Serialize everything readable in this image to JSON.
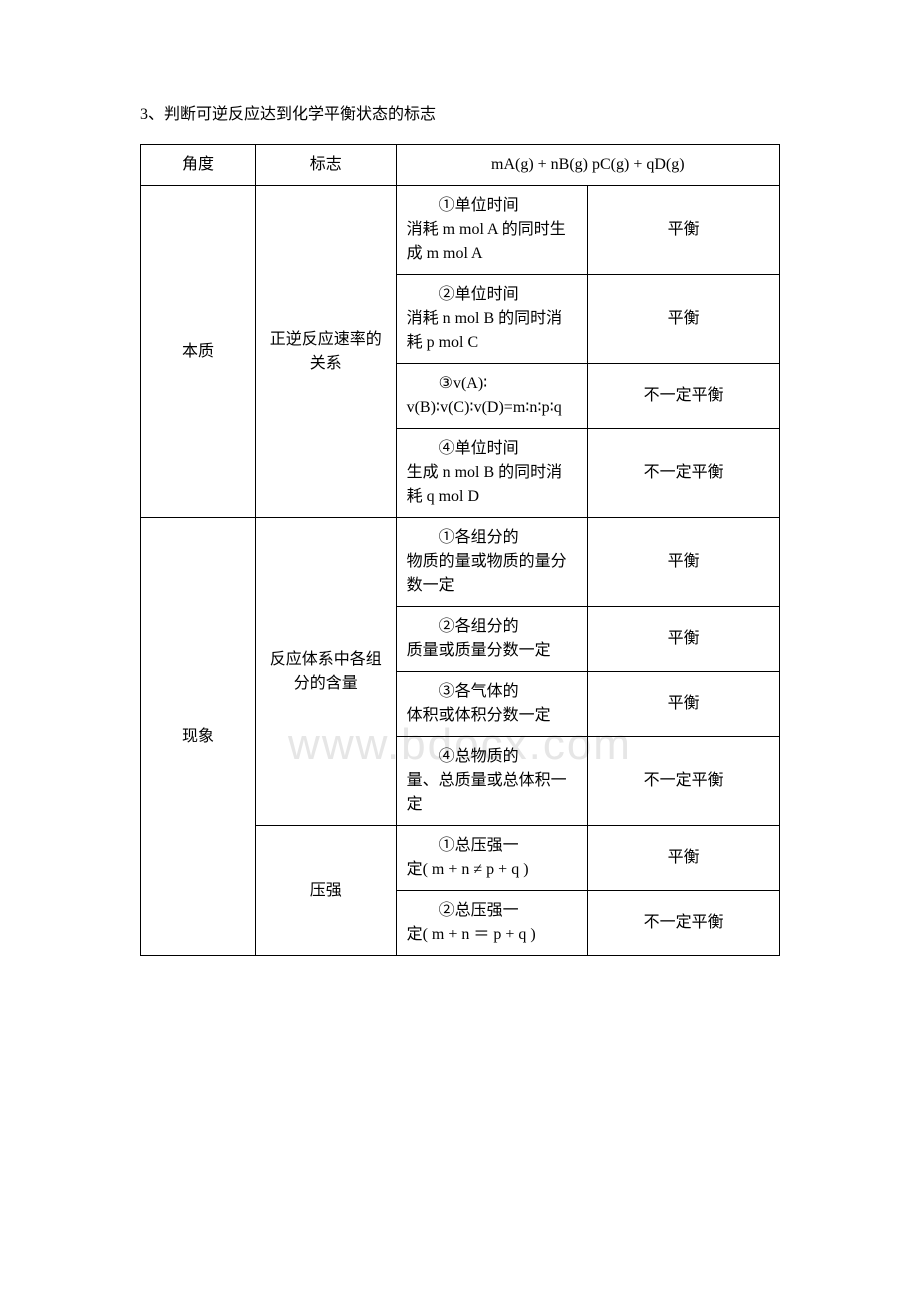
{
  "title": "3、判断可逆反应达到化学平衡状态的标志",
  "watermark": "www.bdocx.com",
  "headers": {
    "angle": "角度",
    "sign": "标志",
    "equation": "mA(g) + nB(g) pC(g) + qD(g)"
  },
  "results": {
    "balanced": "平衡",
    "not_necessarily": "不一定平衡"
  },
  "sections": [
    {
      "angle": "本质",
      "sign": "正逆反应速率的关系",
      "rows": [
        {
          "desc_first": "①单位时间",
          "desc_rest": "消耗 m mol A 的同时生成 m mol A",
          "result": "平衡"
        },
        {
          "desc_first": "②单位时间",
          "desc_rest": "消耗 n mol B 的同时消耗 p mol C",
          "result": "平衡"
        },
        {
          "desc_first": "③v(A)∶",
          "desc_rest": "v(B)∶v(C)∶v(D)=m∶n∶p∶q",
          "result": "不一定平衡"
        },
        {
          "desc_first": "④单位时间",
          "desc_rest": "生成 n mol B 的同时消耗 q mol D",
          "result": "不一定平衡"
        }
      ]
    },
    {
      "angle": "现象",
      "groups": [
        {
          "sign": "反应体系中各组分的含量",
          "rows": [
            {
              "desc_first": "①各组分的",
              "desc_rest": "物质的量或物质的量分数一定",
              "result": "平衡"
            },
            {
              "desc_first": "②各组分的",
              "desc_rest": "质量或质量分数一定",
              "result": "平衡"
            },
            {
              "desc_first": "③各气体的",
              "desc_rest": "体积或体积分数一定",
              "result": "平衡"
            },
            {
              "desc_first": "④总物质的",
              "desc_rest": "量、总质量或总体积一定",
              "result": "不一定平衡"
            }
          ]
        },
        {
          "sign": "压强",
          "rows": [
            {
              "desc_first": "①总压强一",
              "desc_rest": "定( m + n ≠ p + q )",
              "result": "平衡"
            },
            {
              "desc_first": "②总压强一",
              "desc_rest": "定( m + n ＝ p + q )",
              "result": "不一定平衡"
            }
          ]
        }
      ]
    }
  ]
}
